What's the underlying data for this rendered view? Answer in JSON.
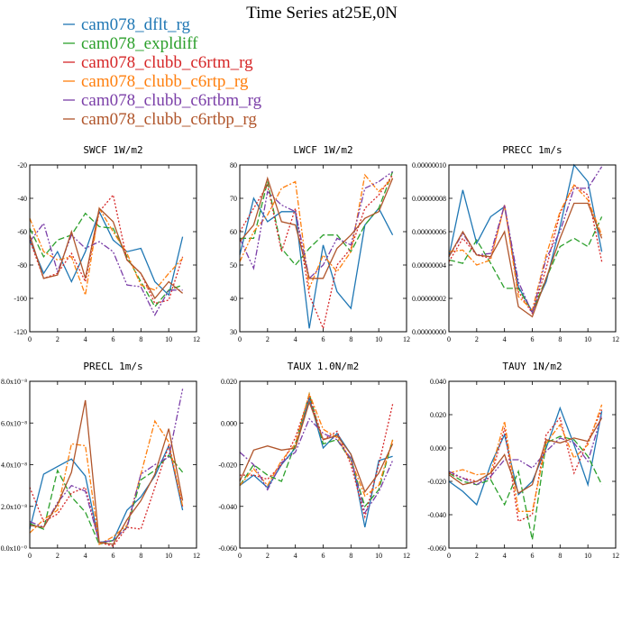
{
  "title": "Time Series at25E,0N",
  "chart_data": [
    {
      "type": "line",
      "title": "SWCF    1W/m2",
      "x": [
        0,
        1,
        2,
        3,
        4,
        5,
        6,
        7,
        8,
        9,
        10,
        11
      ],
      "xlim": [
        0,
        12
      ],
      "ylim": [
        -120,
        -20
      ],
      "xticks": [
        "0",
        "2",
        "4",
        "6",
        "8",
        "10",
        "12"
      ],
      "yticks": [
        "-120",
        "-100",
        "-80",
        "-60",
        "-40",
        "-20"
      ],
      "series": [
        {
          "name": "cam078_dflt_rg",
          "values": [
            -65,
            -85,
            -72,
            -90,
            -72,
            -48,
            -65,
            -72,
            -70,
            -90,
            -98,
            -63
          ]
        },
        {
          "name": "cam078_expldiff",
          "values": [
            -58,
            -75,
            -65,
            -62,
            -49,
            -57,
            -58,
            -75,
            -90,
            -105,
            -95,
            -92
          ]
        },
        {
          "name": "cam078_clubb_c6rtm_rg",
          "values": [
            -65,
            -88,
            -85,
            -73,
            -90,
            -48,
            -38,
            -77,
            -85,
            -103,
            -101,
            -75
          ]
        },
        {
          "name": "cam078_clubb_c6rtp_rg",
          "values": [
            -52,
            -72,
            -77,
            -75,
            -98,
            -46,
            -60,
            -73,
            -92,
            -95,
            -85,
            -76
          ]
        },
        {
          "name": "cam078_clubb_c6rtbm_rg",
          "values": [
            -66,
            -55,
            -84,
            -62,
            -70,
            -66,
            -72,
            -92,
            -93,
            -110,
            -95,
            -95
          ]
        },
        {
          "name": "cam078_clubb_c6rtbp_rg",
          "values": [
            -62,
            -88,
            -86,
            -60,
            -88,
            -46,
            -54,
            -77,
            -85,
            -100,
            -90,
            -97
          ]
        }
      ]
    },
    {
      "type": "line",
      "title": "LWCF    1W/m2",
      "x": [
        0,
        1,
        2,
        3,
        4,
        5,
        6,
        7,
        8,
        9,
        10,
        11
      ],
      "xlim": [
        0,
        12
      ],
      "ylim": [
        30,
        80
      ],
      "xticks": [
        "0",
        "2",
        "4",
        "6",
        "8",
        "10",
        "12"
      ],
      "yticks": [
        "30",
        "40",
        "50",
        "60",
        "70",
        "80"
      ],
      "series": [
        {
          "name": "cam078_dflt_rg",
          "values": [
            53,
            70,
            63,
            66,
            66,
            31,
            56,
            42,
            37,
            62,
            67,
            59
          ]
        },
        {
          "name": "cam078_expldiff",
          "values": [
            58,
            58,
            75,
            55,
            50,
            55,
            59,
            59,
            54,
            62,
            67,
            78
          ]
        },
        {
          "name": "cam078_clubb_c6rtm_rg",
          "values": [
            60,
            67,
            74,
            54,
            67,
            41,
            31,
            50,
            55,
            67,
            71,
            77
          ]
        },
        {
          "name": "cam078_clubb_c6rtp_rg",
          "values": [
            51,
            60,
            65,
            73,
            75,
            43,
            53,
            48,
            54,
            77,
            72,
            76
          ]
        },
        {
          "name": "cam078_clubb_c6rtbm_rg",
          "values": [
            58,
            49,
            72,
            68,
            66,
            46,
            50,
            58,
            56,
            73,
            75,
            78
          ]
        },
        {
          "name": "cam078_clubb_c6rtbp_rg",
          "values": [
            57,
            62,
            76,
            63,
            62,
            46,
            46,
            55,
            59,
            64,
            66,
            76
          ]
        }
      ]
    },
    {
      "type": "line",
      "title": "PRECC    1m/s",
      "x": [
        0,
        1,
        2,
        3,
        4,
        5,
        6,
        7,
        8,
        9,
        10,
        11
      ],
      "xlim": [
        0,
        12
      ],
      "ylim": [
        0,
        1e-07
      ],
      "xticks": [
        "0",
        "2",
        "4",
        "6",
        "8",
        "10",
        "12"
      ],
      "yticks": [
        "0.00000000",
        "0.00000002",
        "0.00000004",
        "0.00000006",
        "0.00000008",
        "0.00000010"
      ],
      "series": [
        {
          "name": "cam078_dflt_rg",
          "values": [
            4.5e-08,
            8.5e-08,
            5.3e-08,
            6.9e-08,
            7.5e-08,
            2.7e-08,
            1.2e-08,
            3e-08,
            6.3e-08,
            1e-07,
            9e-08,
            4.8e-08
          ]
        },
        {
          "name": "cam078_expldiff",
          "values": [
            4.3e-08,
            4.1e-08,
            5.5e-08,
            4.1e-08,
            2.6e-08,
            2.6e-08,
            1.2e-08,
            3.2e-08,
            5.1e-08,
            5.6e-08,
            5.1e-08,
            6.9e-08
          ]
        },
        {
          "name": "cam078_clubb_c6rtm_rg",
          "values": [
            4.2e-08,
            5.6e-08,
            4.6e-08,
            4.4e-08,
            7.6e-08,
            2.4e-08,
            1.1e-08,
            3.8e-08,
            7.1e-08,
            8.8e-08,
            8.2e-08,
            4.2e-08
          ]
        },
        {
          "name": "cam078_clubb_c6rtp_rg",
          "values": [
            4.8e-08,
            4.9e-08,
            4e-08,
            4.3e-08,
            7.6e-08,
            2.1e-08,
            1.3e-08,
            4.6e-08,
            7.2e-08,
            8.8e-08,
            7.9e-08,
            5.8e-08
          ]
        },
        {
          "name": "cam078_clubb_c6rtbm_rg",
          "values": [
            4.5e-08,
            5.9e-08,
            4.6e-08,
            4.7e-08,
            7.6e-08,
            3e-08,
            1.1e-08,
            4.4e-08,
            6e-08,
            8.6e-08,
            8.6e-08,
            9.9e-08
          ]
        },
        {
          "name": "cam078_clubb_c6rtbp_rg",
          "values": [
            4.5e-08,
            6e-08,
            4.6e-08,
            4.5e-08,
            6e-08,
            1.5e-08,
            9e-09,
            3.2e-08,
            5.6e-08,
            7.7e-08,
            7.7e-08,
            5.6e-08
          ]
        }
      ]
    },
    {
      "type": "line",
      "title": "PRECL    1m/s",
      "x": [
        0,
        1,
        2,
        3,
        4,
        5,
        6,
        7,
        8,
        9,
        10,
        11
      ],
      "xlim": [
        0,
        12
      ],
      "ylim": [
        0,
        8.8e-08
      ],
      "xticks": [
        "0",
        "2",
        "4",
        "6",
        "8",
        "10",
        "12"
      ],
      "yticks": [
        "0.0x10⁻⁰",
        "2.0x10⁻⁸",
        "4.0x10⁻⁸",
        "6.0x10⁻⁸",
        "8.0x10⁻⁸"
      ],
      "series": [
        {
          "name": "cam078_dflt_rg",
          "values": [
            1e-08,
            3.9e-08,
            4.3e-08,
            4.7e-08,
            3.8e-08,
            3e-09,
            4e-09,
            2e-08,
            2.7e-08,
            3.8e-08,
            5.4e-08,
            2e-08
          ]
        },
        {
          "name": "cam078_expldiff",
          "values": [
            1.3e-08,
            1e-08,
            4.1e-08,
            2.7e-08,
            1.9e-08,
            2e-09,
            4e-09,
            1.1e-08,
            3.6e-08,
            4.1e-08,
            4.9e-08,
            4e-08
          ]
        },
        {
          "name": "cam078_clubb_c6rtm_rg",
          "values": [
            3.2e-08,
            1.4e-08,
            1.8e-08,
            2.9e-08,
            3.2e-08,
            3e-09,
            1e-09,
            1.1e-08,
            1e-08,
            3.2e-08,
            5.4e-08,
            2.2e-08
          ]
        },
        {
          "name": "cam078_clubb_c6rtp_rg",
          "values": [
            8e-09,
            1.5e-08,
            2e-08,
            5.5e-08,
            5.4e-08,
            2e-09,
            6e-09,
            1.2e-08,
            3.9e-08,
            6.7e-08,
            5.6e-08,
            2.2e-08
          ]
        },
        {
          "name": "cam078_clubb_c6rtbm_rg",
          "values": [
            1.4e-08,
            1.1e-08,
            2.4e-08,
            3.3e-08,
            3e-08,
            3e-09,
            4e-09,
            1.1e-08,
            3.9e-08,
            4.4e-08,
            4.8e-08,
            8.4e-08
          ]
        },
        {
          "name": "cam078_clubb_c6rtbp_rg",
          "values": [
            1.2e-08,
            1.1e-08,
            2.3e-08,
            4e-08,
            7.8e-08,
            3e-09,
            2e-09,
            1.5e-08,
            2.5e-08,
            3.9e-08,
            6.3e-08,
            2.5e-08
          ]
        }
      ]
    },
    {
      "type": "line",
      "title": "TAUX    1.0N/m2",
      "x": [
        0,
        1,
        2,
        3,
        4,
        5,
        6,
        7,
        8,
        9,
        10,
        11
      ],
      "xlim": [
        0,
        12
      ],
      "ylim": [
        -0.06,
        0.02
      ],
      "xticks": [
        "0",
        "2",
        "4",
        "6",
        "8",
        "10",
        "12"
      ],
      "yticks": [
        "-0.060",
        "-0.040",
        "-0.020",
        "0.000",
        "0.020"
      ],
      "series": [
        {
          "name": "cam078_dflt_rg",
          "values": [
            -0.03,
            -0.025,
            -0.031,
            -0.02,
            -0.012,
            0.012,
            -0.012,
            -0.005,
            -0.015,
            -0.05,
            -0.018,
            -0.016
          ]
        },
        {
          "name": "cam078_expldiff",
          "values": [
            -0.03,
            -0.02,
            -0.025,
            -0.028,
            -0.01,
            0.014,
            -0.01,
            -0.008,
            -0.018,
            -0.04,
            -0.032,
            -0.008
          ]
        },
        {
          "name": "cam078_clubb_c6rtm_rg",
          "values": [
            -0.025,
            -0.025,
            -0.027,
            -0.02,
            -0.007,
            0.013,
            -0.008,
            -0.004,
            -0.02,
            -0.045,
            -0.02,
            0.009
          ]
        },
        {
          "name": "cam078_clubb_c6rtp_rg",
          "values": [
            -0.03,
            -0.022,
            -0.03,
            -0.018,
            -0.01,
            0.014,
            -0.003,
            -0.007,
            -0.018,
            -0.035,
            -0.03,
            -0.008
          ]
        },
        {
          "name": "cam078_clubb_c6rtbm_rg",
          "values": [
            -0.014,
            -0.02,
            -0.032,
            -0.019,
            -0.014,
            0.002,
            -0.005,
            -0.008,
            -0.017,
            -0.043,
            -0.033,
            -0.018
          ]
        },
        {
          "name": "cam078_clubb_c6rtbp_rg",
          "values": [
            -0.028,
            -0.013,
            -0.011,
            -0.013,
            -0.012,
            0.01,
            -0.008,
            -0.006,
            -0.015,
            -0.033,
            -0.024,
            -0.01
          ]
        }
      ]
    },
    {
      "type": "line",
      "title": "TAUY    1N/m2",
      "x": [
        0,
        1,
        2,
        3,
        4,
        5,
        6,
        7,
        8,
        9,
        10,
        11
      ],
      "xlim": [
        0,
        12
      ],
      "ylim": [
        -0.06,
        0.04
      ],
      "xticks": [
        "0",
        "2",
        "4",
        "6",
        "8",
        "10",
        "12"
      ],
      "yticks": [
        "-0.060",
        "-0.040",
        "-0.020",
        "0.000",
        "0.020",
        "0.040"
      ],
      "series": [
        {
          "name": "cam078_dflt_rg",
          "values": [
            -0.02,
            -0.026,
            -0.034,
            -0.01,
            0.008,
            -0.028,
            -0.02,
            0.0,
            0.024,
            0.002,
            -0.022,
            0.022
          ]
        },
        {
          "name": "cam078_expldiff",
          "values": [
            -0.015,
            -0.02,
            -0.022,
            -0.019,
            -0.034,
            -0.014,
            -0.055,
            0.003,
            0.007,
            0.005,
            -0.005,
            -0.022
          ]
        },
        {
          "name": "cam078_clubb_c6rtm_rg",
          "values": [
            -0.015,
            -0.018,
            -0.02,
            -0.018,
            0.012,
            -0.044,
            -0.04,
            0.008,
            0.018,
            -0.015,
            0.004,
            0.023
          ]
        },
        {
          "name": "cam078_clubb_c6rtp_rg",
          "values": [
            -0.015,
            -0.013,
            -0.016,
            -0.015,
            0.016,
            -0.038,
            -0.038,
            0.003,
            0.014,
            -0.006,
            0.002,
            0.026
          ]
        },
        {
          "name": "cam078_clubb_c6rtbm_rg",
          "values": [
            -0.014,
            -0.018,
            -0.022,
            -0.017,
            -0.007,
            -0.007,
            -0.012,
            -0.002,
            0.006,
            0.003,
            -0.008,
            0.02
          ]
        },
        {
          "name": "cam078_clubb_c6rtbp_rg",
          "values": [
            -0.016,
            -0.022,
            -0.02,
            -0.015,
            -0.004,
            -0.027,
            -0.022,
            0.005,
            0.003,
            0.006,
            0.004,
            0.018
          ]
        }
      ]
    }
  ],
  "styles": {
    "colors": [
      "#1f77b4",
      "#2ca02c",
      "#d62728",
      "#ff7f0e",
      "#7b3fa8",
      "#b0552b"
    ],
    "dashes": [
      "none",
      "7,3",
      "2,2",
      "6,2,2,2",
      "7,2,2,2,2,2",
      "none"
    ]
  }
}
